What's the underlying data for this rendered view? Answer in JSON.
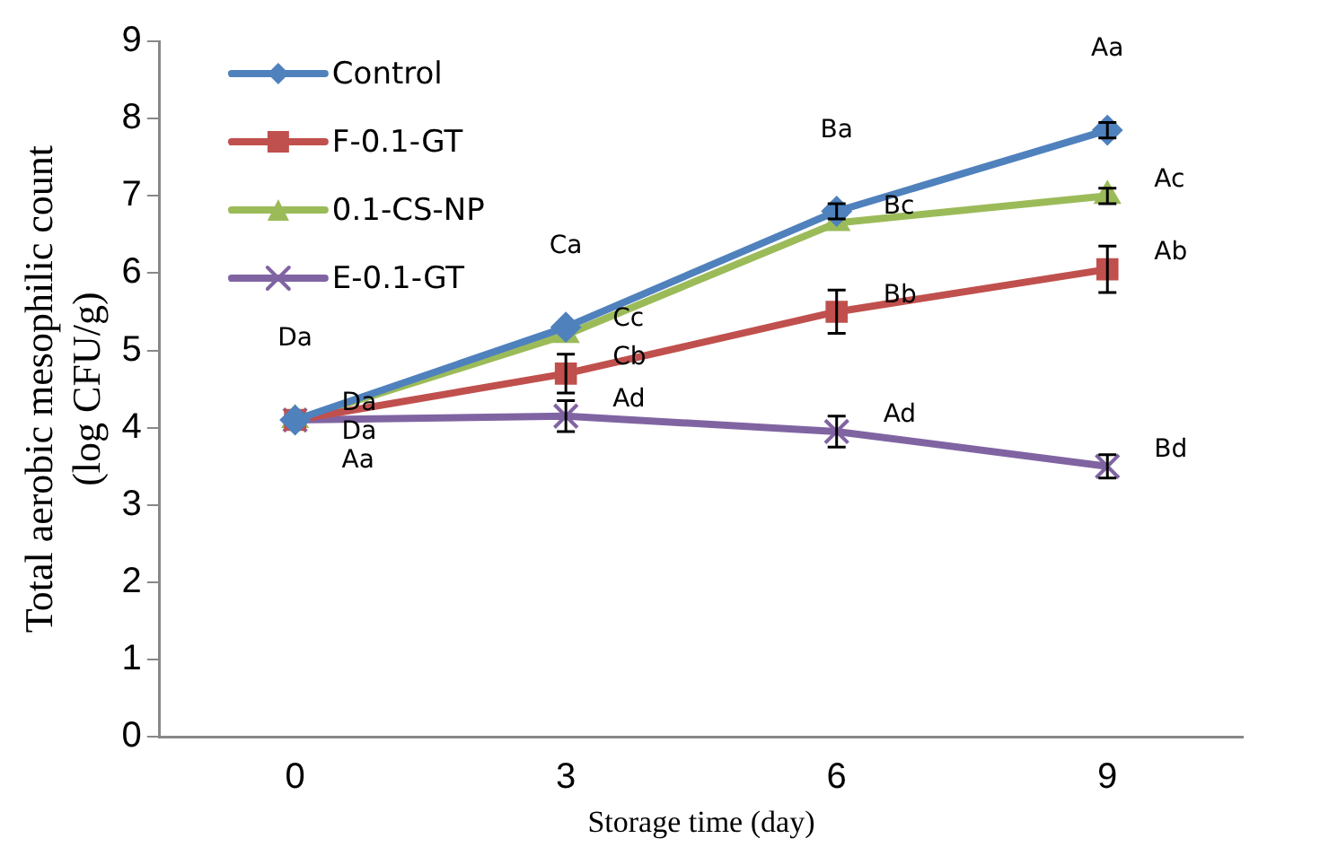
{
  "chart_data": {
    "type": "line",
    "xlabel": "Storage time (day)",
    "ylabel": "Total aerobic mesophilic count\n(log CFU/g)",
    "categories": [
      "0",
      "3",
      "6",
      "9"
    ],
    "series": [
      {
        "name": "Control",
        "color": "#4f81bd",
        "marker": "diamond",
        "values": [
          4.1,
          5.3,
          6.8,
          7.85
        ],
        "errors": [
          null,
          null,
          0.1,
          0.1
        ],
        "value_labels": [
          "Da",
          "Ca",
          "Ba",
          "Aa"
        ]
      },
      {
        "name": "F-0.1-GT",
        "color": "#c0504d",
        "marker": "square",
        "values": [
          4.1,
          4.7,
          5.5,
          6.05
        ],
        "errors": [
          null,
          0.25,
          0.28,
          0.3
        ],
        "value_labels": [
          "Da",
          "Cb",
          "Bb",
          "Ab"
        ]
      },
      {
        "name": "0.1-CS-NP",
        "color": "#9bbb59",
        "marker": "triangle",
        "values": [
          4.1,
          5.2,
          6.65,
          7.0
        ],
        "errors": [
          null,
          null,
          null,
          0.1
        ],
        "value_labels": [
          "Da",
          "Cc",
          "Bc",
          "Ac"
        ]
      },
      {
        "name": "E-0.1-GT",
        "color": "#8064a2",
        "marker": "cross",
        "values": [
          4.1,
          4.15,
          3.95,
          3.5
        ],
        "errors": [
          null,
          0.2,
          0.2,
          0.15
        ],
        "value_labels": [
          "Aa",
          "Ad",
          "Ad",
          "Bd"
        ]
      }
    ],
    "ylim": [
      0,
      9
    ],
    "yticks": [
      0,
      1,
      2,
      3,
      4,
      5,
      6,
      7,
      8,
      9
    ],
    "grid": false,
    "legend": "top left"
  }
}
